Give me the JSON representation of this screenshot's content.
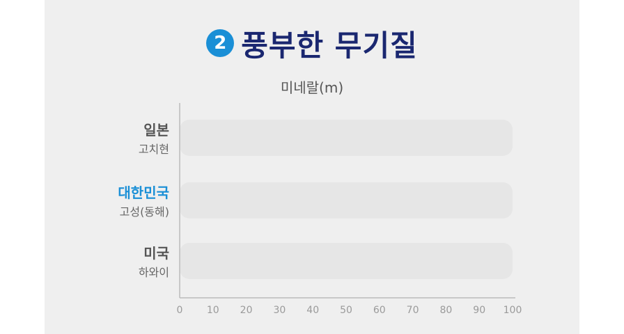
{
  "header": {
    "badge_number": "2",
    "title": "풍부한 무기질",
    "badge_color": "#1a8fd6",
    "title_color": "#1a2770"
  },
  "chart_data": {
    "type": "bar",
    "orientation": "horizontal",
    "title": "풍부한 무기질",
    "xlabel": "미네랄(m)",
    "ylabel": "",
    "xlim": [
      0,
      100
    ],
    "ticks": [
      0,
      10,
      20,
      30,
      40,
      50,
      60,
      70,
      80,
      90,
      100
    ],
    "grid": false,
    "categories": [
      {
        "name": "일본",
        "sub": "고치현",
        "color": "#555555"
      },
      {
        "name": "대한민국",
        "sub": "고성(동해)",
        "color": "#1a8fd6"
      },
      {
        "name": "미국",
        "sub": "하와이",
        "color": "#555555"
      }
    ],
    "values": [
      100,
      100,
      100
    ],
    "bar_color": "#e6e6e6",
    "axis_color": "#bbbbbb"
  }
}
